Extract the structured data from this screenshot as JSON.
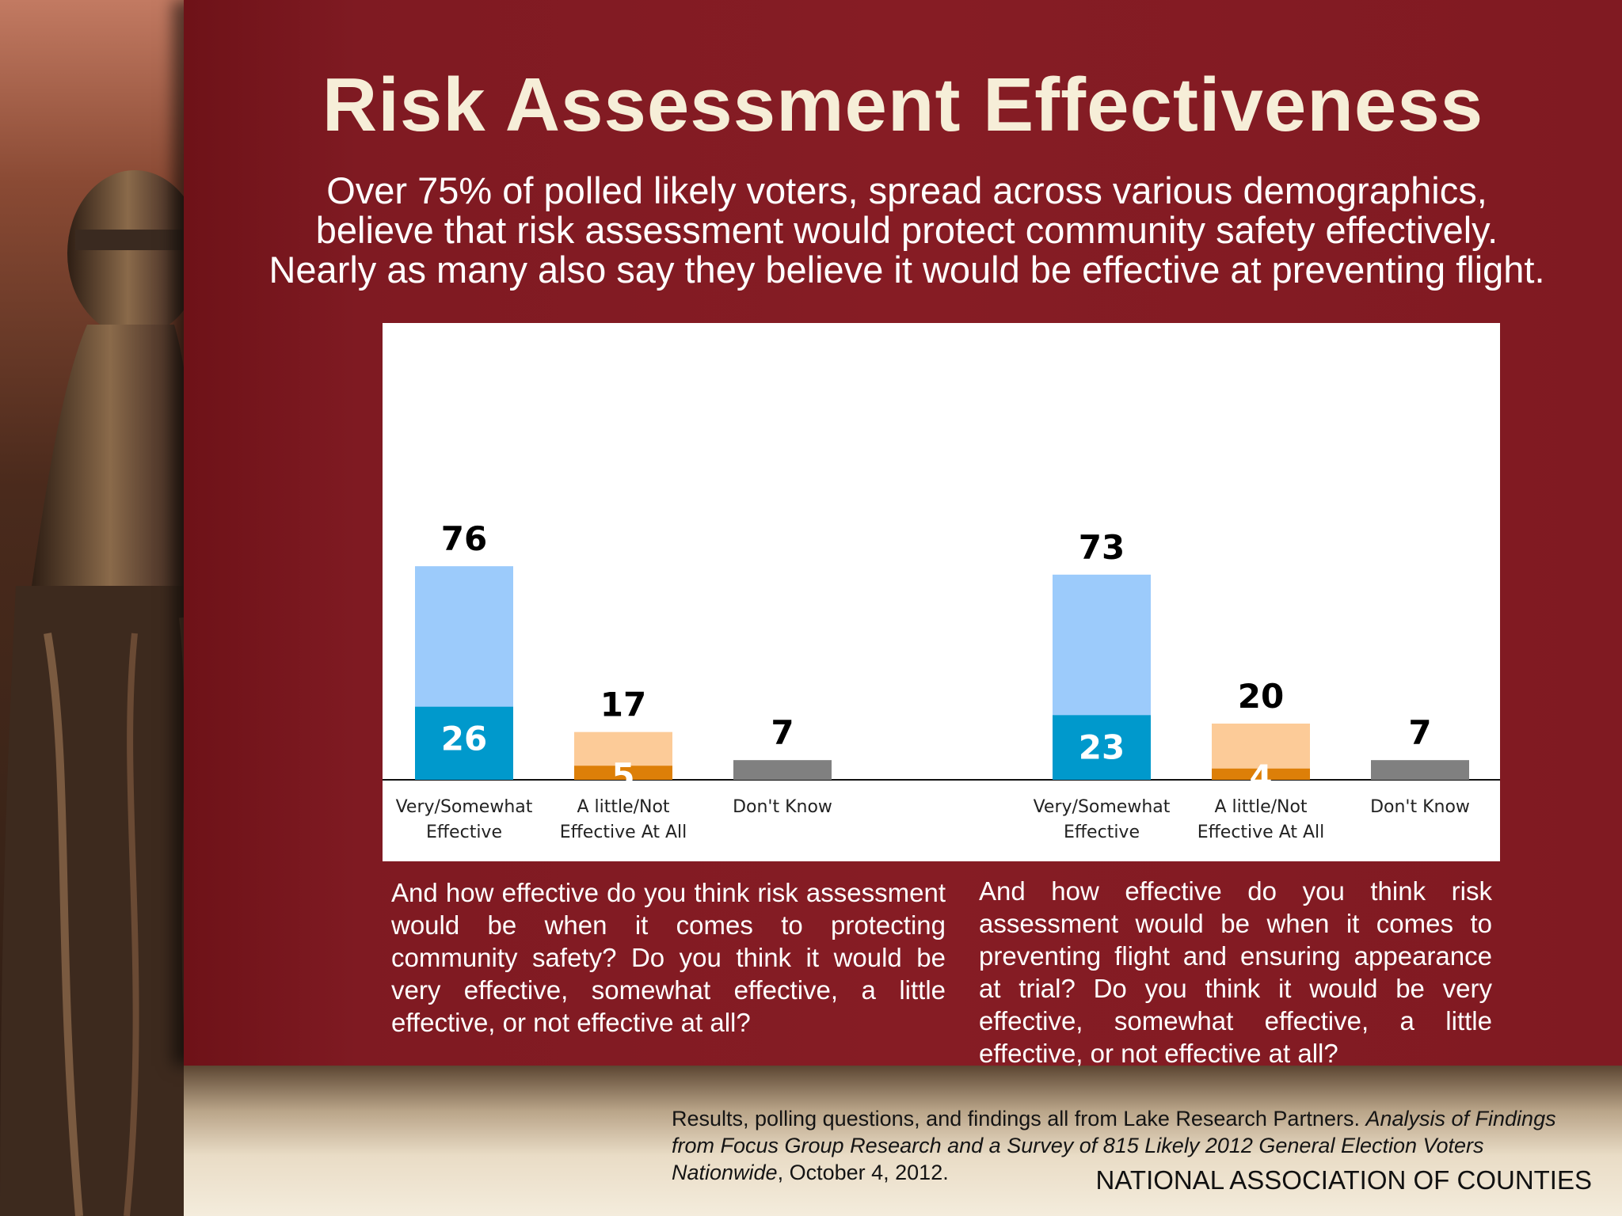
{
  "slide": {
    "title": "Risk Assessment Effectiveness",
    "subtitle_lines": [
      "Over 75% of polled likely voters, spread across various demographics,",
      "believe that risk assessment would protect community safety effectively.",
      "Nearly as many also say they believe it would be effective at preventing flight."
    ],
    "question_left": "And how effective do you think risk assessment would be when it comes to protecting community safety? Do you think it would be very effective, somewhat effective, a little effective, or not effective at all?",
    "question_right": "And how effective do you think risk assessment would be when it comes to preventing flight and ensuring appearance at trial?  Do you think it would be very effective, somewhat effective, a little effective, or not effective at all?",
    "source": {
      "prefix": "Results, polling questions, and findings all from Lake Research Partners.  ",
      "italic_title": "Analysis of Findings from Focus Group Research and a Survey of 815 Likely 2012 General Election Voters Nationwide",
      "suffix": ", October 4, 2012."
    },
    "organization": "NATIONAL ASSOCIATION OF COUNTIES"
  },
  "colors": {
    "very_somewhat_light": "#9ccbfb",
    "very_dark": "#0099cc",
    "not_effective_light": "#fccb98",
    "not_at_all_dark": "#dd7f08",
    "dont_know": "#808080"
  },
  "chart_data": [
    {
      "type": "bar",
      "stacked": true,
      "categories": [
        "Very/Somewhat Effective",
        "A little/Not Effective At All",
        "Don't Know"
      ],
      "category_lines": [
        [
          "Very/Somewhat",
          "Effective"
        ],
        [
          "A little/Not",
          "Effective At All"
        ],
        [
          "Don't Know"
        ]
      ],
      "totals": [
        76,
        17,
        7
      ],
      "intense": [
        26,
        5,
        null
      ],
      "ylim": [
        0,
        100
      ]
    },
    {
      "type": "bar",
      "stacked": true,
      "categories": [
        "Very/Somewhat Effective",
        "A little/Not Effective At All",
        "Don't Know"
      ],
      "category_lines": [
        [
          "Very/Somewhat",
          "Effective"
        ],
        [
          "A little/Not",
          "Effective At All"
        ],
        [
          "Don't Know"
        ]
      ],
      "totals": [
        73,
        20,
        7
      ],
      "intense": [
        23,
        4,
        null
      ],
      "ylim": [
        0,
        100
      ]
    }
  ]
}
